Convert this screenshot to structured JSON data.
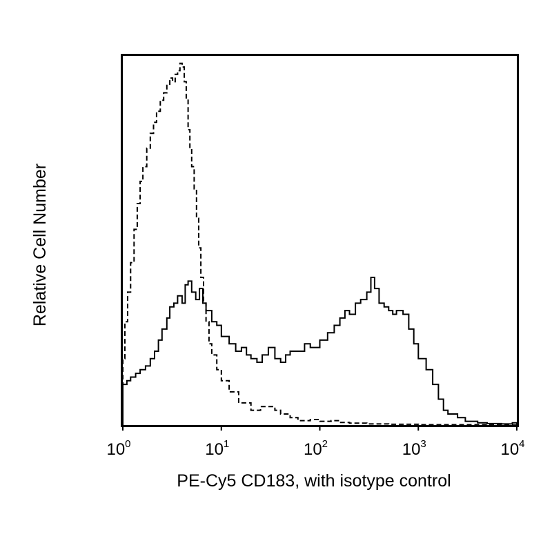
{
  "chart_data": {
    "type": "line",
    "title": "",
    "xlabel": "PE-Cy5 CD183, with isotype control",
    "ylabel": "Relative Cell Number",
    "xscale": "log",
    "xlim": [
      1,
      10000
    ],
    "ylim": [
      0,
      100
    ],
    "grid": false,
    "legend": "none",
    "x_ticks": [
      {
        "base": "10",
        "exp": "0",
        "value": 1
      },
      {
        "base": "10",
        "exp": "1",
        "value": 10
      },
      {
        "base": "10",
        "exp": "2",
        "value": 100
      },
      {
        "base": "10",
        "exp": "3",
        "value": 1000
      },
      {
        "base": "10",
        "exp": "4",
        "value": 10000
      }
    ],
    "series": [
      {
        "style": "dashed",
        "color": "#000000",
        "points": [
          [
            1.0,
            18
          ],
          [
            1.05,
            28
          ],
          [
            1.12,
            36
          ],
          [
            1.2,
            44
          ],
          [
            1.3,
            53
          ],
          [
            1.4,
            60
          ],
          [
            1.5,
            66
          ],
          [
            1.6,
            70
          ],
          [
            1.75,
            75
          ],
          [
            1.9,
            79
          ],
          [
            2.05,
            82
          ],
          [
            2.2,
            85
          ],
          [
            2.4,
            88
          ],
          [
            2.6,
            90
          ],
          [
            2.8,
            92
          ],
          [
            3.0,
            94
          ],
          [
            3.2,
            93
          ],
          [
            3.4,
            95
          ],
          [
            3.6,
            96
          ],
          [
            3.8,
            98
          ],
          [
            4.0,
            97
          ],
          [
            4.2,
            93
          ],
          [
            4.4,
            88
          ],
          [
            4.6,
            80
          ],
          [
            4.8,
            75
          ],
          [
            5.0,
            70
          ],
          [
            5.3,
            64
          ],
          [
            5.6,
            56
          ],
          [
            5.9,
            48
          ],
          [
            6.2,
            40
          ],
          [
            6.6,
            33
          ],
          [
            7.0,
            28
          ],
          [
            7.5,
            22
          ],
          [
            8.0,
            19
          ],
          [
            9.0,
            15
          ],
          [
            10,
            12
          ],
          [
            12,
            9
          ],
          [
            15,
            6
          ],
          [
            20,
            4
          ],
          [
            25,
            5
          ],
          [
            30,
            5
          ],
          [
            35,
            4
          ],
          [
            40,
            3
          ],
          [
            50,
            2
          ],
          [
            60,
            1.2
          ],
          [
            80,
            1.5
          ],
          [
            100,
            1.0
          ],
          [
            130,
            1.2
          ],
          [
            160,
            0.7
          ],
          [
            200,
            0.5
          ],
          [
            300,
            0.3
          ],
          [
            500,
            0.2
          ],
          [
            1000,
            0.1
          ],
          [
            2000,
            0.1
          ],
          [
            5000,
            0.0
          ],
          [
            10000,
            0.0
          ]
        ]
      },
      {
        "style": "solid",
        "color": "#000000",
        "points": [
          [
            1.0,
            11
          ],
          [
            1.1,
            12
          ],
          [
            1.2,
            13
          ],
          [
            1.35,
            14
          ],
          [
            1.5,
            15
          ],
          [
            1.7,
            16
          ],
          [
            1.9,
            18
          ],
          [
            2.1,
            20
          ],
          [
            2.3,
            23
          ],
          [
            2.5,
            26
          ],
          [
            2.8,
            29
          ],
          [
            3.0,
            32
          ],
          [
            3.3,
            33
          ],
          [
            3.6,
            35
          ],
          [
            4.0,
            33
          ],
          [
            4.3,
            38
          ],
          [
            4.6,
            39
          ],
          [
            5.0,
            36
          ],
          [
            5.5,
            34
          ],
          [
            6.0,
            37
          ],
          [
            6.5,
            33
          ],
          [
            7.0,
            31
          ],
          [
            8.0,
            28
          ],
          [
            9.0,
            27
          ],
          [
            10,
            24
          ],
          [
            12,
            22
          ],
          [
            14,
            20
          ],
          [
            16,
            21
          ],
          [
            18,
            19
          ],
          [
            20,
            18
          ],
          [
            23,
            17
          ],
          [
            26,
            19
          ],
          [
            30,
            21
          ],
          [
            35,
            18
          ],
          [
            40,
            17
          ],
          [
            45,
            19
          ],
          [
            50,
            20
          ],
          [
            60,
            20
          ],
          [
            70,
            22
          ],
          [
            80,
            21
          ],
          [
            100,
            23
          ],
          [
            120,
            25
          ],
          [
            140,
            27
          ],
          [
            160,
            29
          ],
          [
            180,
            31
          ],
          [
            200,
            30
          ],
          [
            230,
            33
          ],
          [
            260,
            34
          ],
          [
            300,
            36
          ],
          [
            330,
            40
          ],
          [
            360,
            37
          ],
          [
            400,
            33
          ],
          [
            450,
            32
          ],
          [
            500,
            31
          ],
          [
            550,
            30
          ],
          [
            600,
            31
          ],
          [
            700,
            30
          ],
          [
            800,
            26
          ],
          [
            900,
            22
          ],
          [
            1000,
            18
          ],
          [
            1200,
            15
          ],
          [
            1400,
            11
          ],
          [
            1600,
            7
          ],
          [
            1800,
            4
          ],
          [
            2000,
            3
          ],
          [
            2500,
            2
          ],
          [
            3000,
            1
          ],
          [
            4000,
            0.6
          ],
          [
            5000,
            0.4
          ],
          [
            7000,
            0.3
          ],
          [
            9000,
            0.6
          ],
          [
            10000,
            0.2
          ]
        ]
      }
    ]
  }
}
